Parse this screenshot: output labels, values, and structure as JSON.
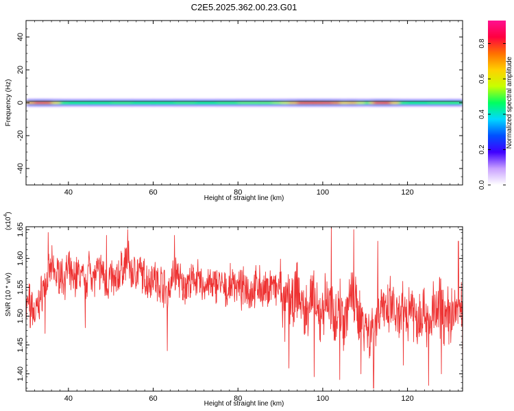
{
  "chart_data": [
    {
      "type": "heatmap",
      "title": "C2E5.2025.362.00.23.G01",
      "xlabel": "Height of straight line (km)",
      "ylabel": "Frequency (Hz)",
      "xlim": [
        30,
        133
      ],
      "ylim": [
        -50,
        50
      ],
      "xticks": [
        40,
        60,
        80,
        100,
        120
      ],
      "yticks": [
        40,
        20,
        0,
        -20,
        -40
      ],
      "grid": false,
      "band_center_frequency": 0,
      "band": {
        "heights": [
          30,
          32,
          34,
          36,
          38,
          40,
          45,
          50,
          55,
          60,
          65,
          70,
          75,
          80,
          85,
          88,
          90,
          92,
          94,
          96,
          98,
          100,
          102,
          104,
          106,
          108,
          110,
          111,
          112,
          114,
          116,
          118,
          120,
          125,
          130,
          133
        ],
        "normalized_amplitude": [
          0.55,
          0.95,
          0.9,
          0.8,
          0.55,
          0.5,
          0.5,
          0.5,
          0.55,
          0.45,
          0.55,
          0.5,
          0.5,
          0.55,
          0.55,
          0.55,
          0.6,
          0.65,
          0.8,
          0.95,
          0.85,
          0.9,
          0.95,
          0.65,
          0.75,
          0.7,
          0.55,
          0.5,
          0.9,
          0.95,
          0.85,
          0.55,
          0.5,
          0.5,
          0.55,
          0.5
        ]
      },
      "colorbar": {
        "label": "Normalized spectral amplitude",
        "ticks": [
          "0.0",
          "0.2",
          "0.4",
          "0.6",
          "0.8"
        ],
        "range": [
          0,
          0.93
        ],
        "colors": [
          "#ffffff",
          "#c8a0ff",
          "#3f00ff",
          "#0050ff",
          "#00d8ff",
          "#00ff60",
          "#c8ff00",
          "#ffd000",
          "#ff7000",
          "#ff0040",
          "#ff1090"
        ]
      }
    },
    {
      "type": "line",
      "title": "",
      "xlabel": "Height of straight line (km)",
      "ylabel": "SNR (10 * v/v)",
      "multiplier": "(x10",
      "multiplier_exp": "4",
      "xlim": [
        30,
        133
      ],
      "ylim": [
        1.37,
        1.655
      ],
      "xticks": [
        40,
        60,
        80,
        100,
        120
      ],
      "yticks": [
        "1.65",
        "1.60",
        "1.55",
        "1.50",
        "1.45",
        "1.40"
      ],
      "grid": false,
      "series": [
        {
          "color": "#ee3333",
          "x": [
            30,
            31,
            32,
            33,
            34,
            35,
            36,
            37,
            38,
            39,
            40,
            41,
            42,
            43,
            44,
            45,
            46,
            47,
            48,
            49,
            50,
            51,
            52,
            53,
            54,
            55,
            56,
            57,
            58,
            59,
            60,
            61,
            62,
            63,
            64,
            65,
            66,
            67,
            68,
            69,
            70,
            71,
            72,
            73,
            74,
            75,
            76,
            77,
            78,
            79,
            80,
            81,
            82,
            83,
            84,
            85,
            86,
            87,
            88,
            89,
            90,
            91,
            92,
            93,
            94,
            95,
            96,
            97,
            98,
            99,
            100,
            101,
            102,
            103,
            104,
            105,
            106,
            107,
            108,
            109,
            110,
            111,
            112,
            113,
            114,
            115,
            116,
            117,
            118,
            119,
            120,
            121,
            122,
            123,
            124,
            125,
            126,
            127,
            128,
            129,
            130,
            131,
            132,
            133
          ],
          "y": [
            1.515,
            1.53,
            1.5,
            1.52,
            1.55,
            1.56,
            1.585,
            1.57,
            1.575,
            1.565,
            1.58,
            1.56,
            1.575,
            1.57,
            1.555,
            1.59,
            1.565,
            1.575,
            1.58,
            1.55,
            1.57,
            1.555,
            1.575,
            1.585,
            1.6,
            1.57,
            1.58,
            1.575,
            1.565,
            1.56,
            1.575,
            1.555,
            1.56,
            1.545,
            1.55,
            1.575,
            1.57,
            1.545,
            1.56,
            1.555,
            1.57,
            1.555,
            1.55,
            1.56,
            1.545,
            1.56,
            1.555,
            1.54,
            1.55,
            1.56,
            1.55,
            1.545,
            1.555,
            1.54,
            1.55,
            1.555,
            1.54,
            1.545,
            1.56,
            1.54,
            1.555,
            1.5,
            1.545,
            1.51,
            1.55,
            1.52,
            1.5,
            1.535,
            1.525,
            1.49,
            1.515,
            1.53,
            1.51,
            1.5,
            1.525,
            1.49,
            1.52,
            1.535,
            1.51,
            1.5,
            1.49,
            1.47,
            1.485,
            1.5,
            1.53,
            1.49,
            1.52,
            1.505,
            1.485,
            1.515,
            1.5,
            1.53,
            1.49,
            1.505,
            1.52,
            1.47,
            1.51,
            1.5,
            1.525,
            1.49,
            1.505,
            1.5,
            1.52,
            1.5
          ],
          "peaks_high": [
            [
              35.2,
              1.645
            ],
            [
              49,
              1.64
            ],
            [
              54,
              1.65
            ],
            [
              65,
              1.64
            ],
            [
              102,
              1.655
            ],
            [
              107.3,
              1.65
            ],
            [
              113,
              1.63
            ],
            [
              132,
              1.63
            ]
          ],
          "peaks_low": [
            [
              31,
              1.48
            ],
            [
              34.5,
              1.47
            ],
            [
              44,
              1.48
            ],
            [
              63.3,
              1.44
            ],
            [
              92,
              1.41
            ],
            [
              98,
              1.395
            ],
            [
              104,
              1.39
            ],
            [
              109,
              1.4
            ],
            [
              112,
              1.375
            ],
            [
              119,
              1.415
            ],
            [
              125,
              1.38
            ],
            [
              128,
              1.4
            ],
            [
              133,
              1.395
            ]
          ]
        }
      ]
    }
  ]
}
